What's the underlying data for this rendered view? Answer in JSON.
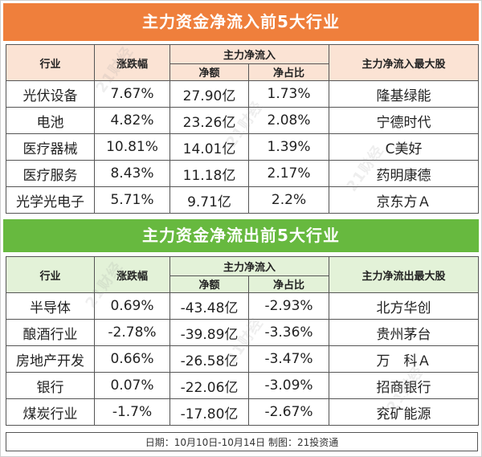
{
  "inflow": {
    "title": "主力资金净流入前5大行业",
    "headers": {
      "industry": "行业",
      "change": "涨跌幅",
      "main_flow": "主力净流入",
      "net_amount": "净额",
      "net_ratio": "净占比",
      "top_stock": "主力净流入最大股"
    },
    "rows": [
      {
        "industry": "光伏设备",
        "change": "7.67%",
        "net_amount": "27.90亿",
        "net_ratio": "1.73%",
        "top_stock": "隆基绿能"
      },
      {
        "industry": "电池",
        "change": "4.82%",
        "net_amount": "23.26亿",
        "net_ratio": "2.08%",
        "top_stock": "宁德时代"
      },
      {
        "industry": "医疗器械",
        "change": "10.81%",
        "net_amount": "14.01亿",
        "net_ratio": "1.39%",
        "top_stock": "C美好"
      },
      {
        "industry": "医疗服务",
        "change": "8.43%",
        "net_amount": "11.18亿",
        "net_ratio": "2.17%",
        "top_stock": "药明康德"
      },
      {
        "industry": "光学光电子",
        "change": "5.71%",
        "net_amount": "9.71亿",
        "net_ratio": "2.2%",
        "top_stock": "京东方Ａ"
      }
    ]
  },
  "outflow": {
    "title": "主力资金净流出前5大行业",
    "headers": {
      "industry": "行业",
      "change": "涨跌幅",
      "main_flow": "主力净流入",
      "net_amount": "净额",
      "net_ratio": "净占比",
      "top_stock": "主力净流出最大股"
    },
    "rows": [
      {
        "industry": "半导体",
        "change": "0.69%",
        "net_amount": "-43.48亿",
        "net_ratio": "-2.93%",
        "top_stock": "北方华创"
      },
      {
        "industry": "酿酒行业",
        "change": "-2.78%",
        "net_amount": "-39.89亿",
        "net_ratio": "-3.36%",
        "top_stock": "贵州茅台"
      },
      {
        "industry": "房地产开发",
        "change": "0.66%",
        "net_amount": "-26.58亿",
        "net_ratio": "-3.47%",
        "top_stock": "万　科Ａ"
      },
      {
        "industry": "银行",
        "change": "0.07%",
        "net_amount": "-22.06亿",
        "net_ratio": "-3.09%",
        "top_stock": "招商银行"
      },
      {
        "industry": "煤炭行业",
        "change": "-1.7%",
        "net_amount": "-17.80亿",
        "net_ratio": "-2.67%",
        "top_stock": "兖矿能源"
      }
    ]
  },
  "footer": "日期：10月10日-10月14日 制图：21投资通",
  "watermark": "21财经",
  "colors": {
    "inflow_banner": "#ef7f3c",
    "inflow_header": "#fbe3d4",
    "outflow_banner": "#67b93f",
    "outflow_header": "#e3f2d8"
  }
}
